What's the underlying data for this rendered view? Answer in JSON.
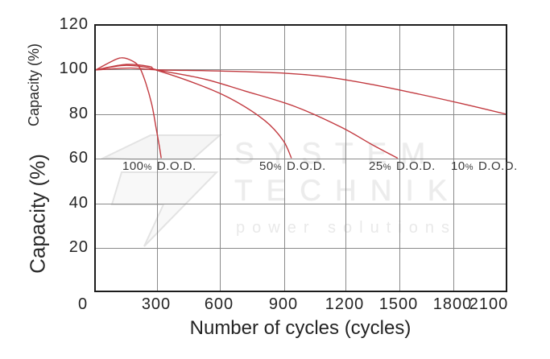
{
  "chart": {
    "y_axis_title": "Capacity (%)",
    "x_axis_title": "Number of cycles (cycles)",
    "x_ticks": [
      "0",
      "300",
      "600",
      "900",
      "1200",
      "1500",
      "1800",
      "2100"
    ],
    "y_ticks": [
      "120",
      "100",
      "80",
      "60",
      "40",
      "20"
    ],
    "dod_labels": [
      {
        "num": "100",
        "pct": "%",
        "dod": "D.O.D."
      },
      {
        "num": "50",
        "pct": "%",
        "dod": "D.O.D."
      },
      {
        "num": "25",
        "pct": "%",
        "dod": "D.O.D."
      },
      {
        "num": "10",
        "pct": "%",
        "dod": "D.O.D."
      }
    ],
    "curve_color": "#c23a40",
    "grid_color": "#8a8a8a",
    "axis_color": "#1c1c1c"
  },
  "watermark": {
    "line1": "SYSTEM",
    "line2": "TECHNIK",
    "line3": "power solutions"
  },
  "chart_data": {
    "type": "line",
    "title": "",
    "xlabel": "Number of cycles (cycles)",
    "ylabel": "Capacity (%)",
    "xlim": [
      0,
      2100
    ],
    "ylim": [
      0,
      120
    ],
    "x_tick_values": [
      0,
      300,
      600,
      900,
      1200,
      1500,
      1800,
      2100
    ],
    "y_tick_values": [
      0,
      20,
      40,
      60,
      80,
      100,
      120
    ],
    "grid": true,
    "legend_position": "inline-labels",
    "series": [
      {
        "name": "100% D.O.D.",
        "points": [
          [
            0,
            100
          ],
          [
            70,
            103.5
          ],
          [
            125,
            105.5
          ],
          [
            180,
            104
          ],
          [
            215,
            101
          ],
          [
            245,
            94
          ],
          [
            275,
            84
          ],
          [
            295,
            74
          ],
          [
            310,
            66
          ],
          [
            320,
            60
          ]
        ]
      },
      {
        "name": "50% D.O.D.",
        "points": [
          [
            0,
            100
          ],
          [
            130,
            102
          ],
          [
            225,
            101.5
          ],
          [
            300,
            99.8
          ],
          [
            480,
            94
          ],
          [
            650,
            87
          ],
          [
            810,
            77
          ],
          [
            895,
            68
          ],
          [
            935,
            60
          ]
        ]
      },
      {
        "name": "25% D.O.D.",
        "points": [
          [
            0,
            100
          ],
          [
            150,
            102.5
          ],
          [
            265,
            101.5
          ],
          [
            300,
            100
          ],
          [
            520,
            96
          ],
          [
            715,
            90.5
          ],
          [
            950,
            83.5
          ],
          [
            1180,
            74
          ],
          [
            1340,
            66.5
          ],
          [
            1490,
            60
          ]
        ]
      },
      {
        "name": "10% D.O.D.",
        "points": [
          [
            0,
            100
          ],
          [
            170,
            100.8
          ],
          [
            300,
            100
          ],
          [
            600,
            99.5
          ],
          [
            900,
            98.5
          ],
          [
            1090,
            97
          ],
          [
            1340,
            93.5
          ],
          [
            1610,
            89
          ],
          [
            1860,
            84.5
          ],
          [
            2100,
            80
          ]
        ]
      }
    ]
  }
}
